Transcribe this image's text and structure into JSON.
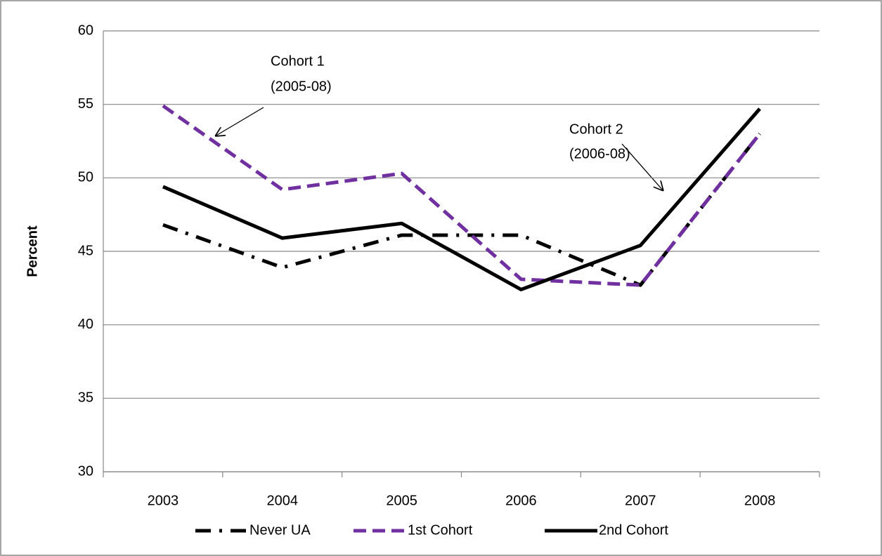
{
  "chart_data": {
    "type": "line",
    "y_label": "Percent",
    "categories": [
      "2003",
      "2004",
      "2005",
      "2006",
      "2007",
      "2008"
    ],
    "series": [
      {
        "name": "Never UA",
        "color": "#000000",
        "dash": "dashdot",
        "values": [
          46.8,
          43.9,
          46.1,
          46.1,
          42.7,
          53.0
        ]
      },
      {
        "name": "1st Cohort",
        "color": "#7030a0",
        "dash": "dash",
        "values": [
          54.9,
          49.2,
          50.3,
          43.1,
          42.7,
          53.0
        ]
      },
      {
        "name": "2nd Cohort",
        "color": "#000000",
        "dash": "solid",
        "values": [
          49.4,
          45.9,
          46.9,
          42.4,
          45.4,
          54.7
        ]
      }
    ],
    "annotations": [
      [
        "Cohort 1",
        "(2005-08)"
      ],
      [
        "Cohort 2",
        "(2006-08)"
      ]
    ],
    "ylim": [
      30,
      60
    ],
    "yticks": [
      30,
      35,
      40,
      45,
      50,
      55,
      60
    ],
    "grid": true
  }
}
